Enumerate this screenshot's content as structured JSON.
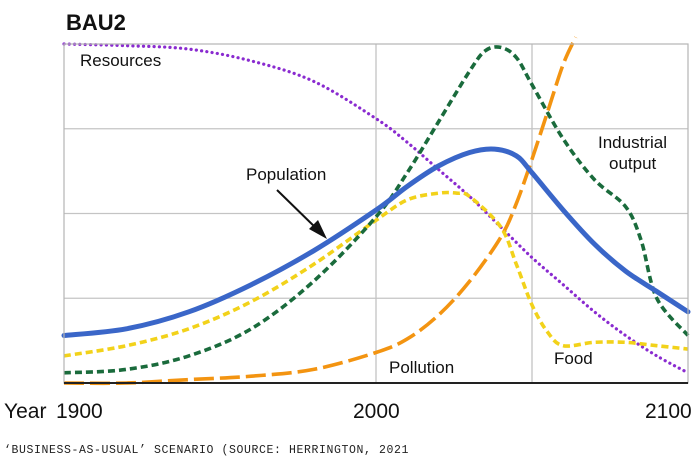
{
  "caption": "‘BUSINESS-AS-USUAL’ SCENARIO (SOURCE: HERRINGTON, 2021",
  "chart_data": {
    "type": "line",
    "title": "BAU2",
    "xlabel": "Year",
    "x_tick_labels": [
      "1900",
      "2000",
      "2100"
    ],
    "xlim": [
      1900,
      2100
    ],
    "ylim": [
      0,
      1
    ],
    "y_gridlines": 4,
    "grid": true,
    "legend": "inline labels",
    "series": [
      {
        "name": "Resources",
        "color": "#8a2bd0",
        "style": "dotted",
        "x": [
          1900,
          1920,
          1940,
          1960,
          1980,
          2000,
          2010,
          2020,
          2030,
          2040,
          2050,
          2060,
          2070,
          2080,
          2090,
          2100
        ],
        "y": [
          1.0,
          0.995,
          0.985,
          0.95,
          0.89,
          0.78,
          0.71,
          0.63,
          0.55,
          0.46,
          0.37,
          0.29,
          0.21,
          0.14,
          0.08,
          0.03
        ]
      },
      {
        "name": "Population",
        "color": "#3a66c8",
        "style": "solid",
        "x": [
          1900,
          1920,
          1940,
          1960,
          1980,
          2000,
          2010,
          2020,
          2030,
          2038,
          2045,
          2050,
          2060,
          2070,
          2080,
          2090,
          2100
        ],
        "y": [
          0.14,
          0.16,
          0.21,
          0.29,
          0.39,
          0.51,
          0.58,
          0.64,
          0.68,
          0.69,
          0.67,
          0.62,
          0.51,
          0.41,
          0.33,
          0.27,
          0.21
        ]
      },
      {
        "name": "Food",
        "color": "#f2d21a",
        "style": "dashed",
        "x": [
          1900,
          1920,
          1940,
          1960,
          1980,
          2000,
          2010,
          2020,
          2026,
          2030,
          2040,
          2045,
          2050,
          2055,
          2060,
          2070,
          2080,
          2090,
          2100
        ],
        "y": [
          0.08,
          0.11,
          0.16,
          0.24,
          0.35,
          0.48,
          0.54,
          0.56,
          0.56,
          0.55,
          0.46,
          0.35,
          0.23,
          0.15,
          0.11,
          0.12,
          0.12,
          0.11,
          0.1
        ]
      },
      {
        "name": "Industrial output",
        "color": "#1a6b3c",
        "style": "dashed",
        "x": [
          1900,
          1920,
          1940,
          1960,
          1980,
          2000,
          2010,
          2020,
          2030,
          2035,
          2040,
          2045,
          2050,
          2060,
          2070,
          2080,
          2085,
          2090,
          2100
        ],
        "y": [
          0.03,
          0.04,
          0.08,
          0.16,
          0.3,
          0.49,
          0.62,
          0.77,
          0.92,
          0.98,
          0.99,
          0.96,
          0.88,
          0.72,
          0.6,
          0.52,
          0.42,
          0.25,
          0.14
        ]
      },
      {
        "name": "Pollution",
        "color": "#f39411",
        "style": "long-dashed",
        "x": [
          1900,
          1920,
          1940,
          1960,
          1980,
          2000,
          2010,
          2020,
          2030,
          2040,
          2045,
          2050,
          2055,
          2060,
          2064
        ],
        "y": [
          0.0,
          0.0,
          0.01,
          0.02,
          0.04,
          0.09,
          0.13,
          0.2,
          0.3,
          0.43,
          0.53,
          0.66,
          0.8,
          0.94,
          1.02
        ]
      }
    ],
    "annotations": [
      {
        "text": "Resources",
        "series": "Resources"
      },
      {
        "text": "Population",
        "series": "Population",
        "arrow": true
      },
      {
        "text": "Food",
        "series": "Food"
      },
      {
        "text": "Industrial",
        "series": "Industrial output"
      },
      {
        "text": "output",
        "series": "Industrial output"
      },
      {
        "text": "Pollution",
        "series": "Pollution"
      }
    ]
  }
}
